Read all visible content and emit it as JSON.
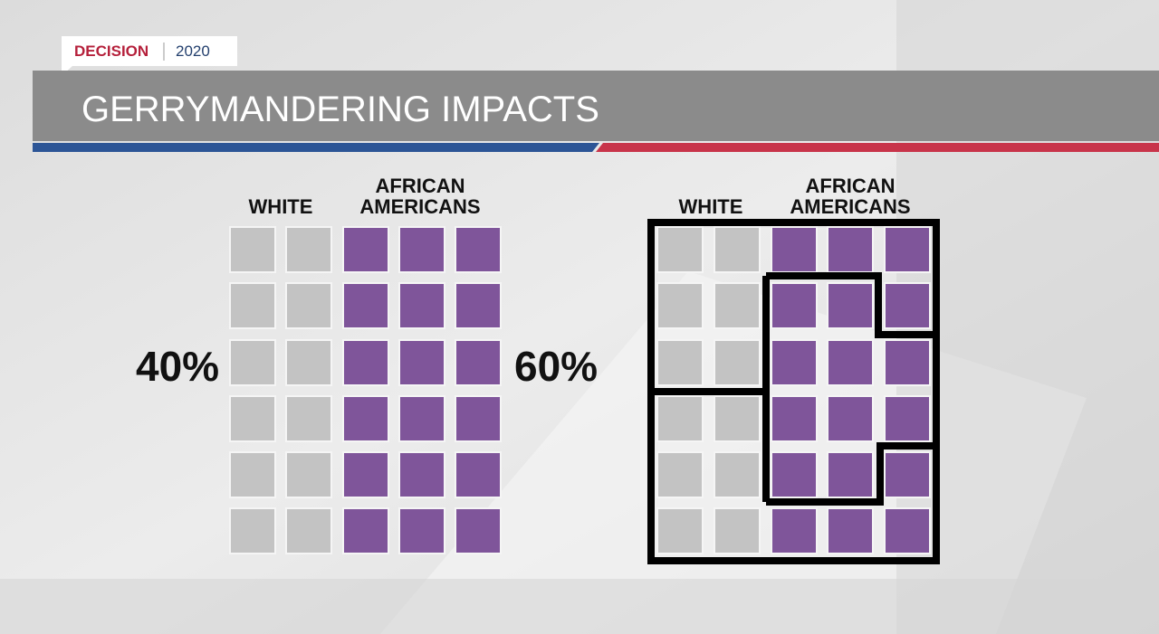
{
  "badge": {
    "primary": "DECISION",
    "secondary": "2020"
  },
  "title": "GERRYMANDERING IMPACTS",
  "left_panel": {
    "white_label": "WHITE",
    "african_americans_label": [
      "AFRICAN",
      "AMERICANS"
    ],
    "white_share": "40%",
    "african_americans_share": "60%"
  },
  "right_panel": {
    "white_label": "WHITE",
    "african_americans_label": [
      "AFRICAN",
      "AMERICANS"
    ]
  }
}
